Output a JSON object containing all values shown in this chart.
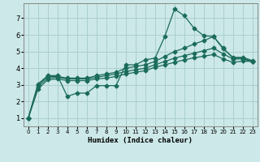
{
  "title": "",
  "xlabel": "Humidex (Indice chaleur)",
  "bg_color": "#cce8e8",
  "grid_color": "#aacfcf",
  "line_color": "#1a6b5a",
  "xlim": [
    -0.5,
    23.5
  ],
  "ylim": [
    0.5,
    7.9
  ],
  "yticks": [
    1,
    2,
    3,
    4,
    5,
    6,
    7
  ],
  "xticks": [
    0,
    1,
    2,
    3,
    4,
    5,
    6,
    7,
    8,
    9,
    10,
    11,
    12,
    13,
    14,
    15,
    16,
    17,
    18,
    19,
    20,
    21,
    22,
    23
  ],
  "series1_x": [
    0,
    1,
    2,
    3,
    4,
    5,
    6,
    7,
    8,
    9,
    10,
    11,
    12,
    13,
    14,
    15,
    16,
    17,
    18,
    19,
    20,
    21,
    22,
    23
  ],
  "series1_y": [
    1.0,
    3.05,
    3.55,
    3.55,
    2.3,
    2.5,
    2.5,
    2.95,
    2.95,
    2.95,
    4.2,
    4.2,
    4.5,
    4.6,
    5.9,
    7.55,
    7.15,
    6.4,
    5.95,
    5.9,
    5.2,
    4.6,
    4.6,
    4.4
  ],
  "series2_x": [
    0,
    1,
    2,
    3,
    4,
    5,
    6,
    7,
    8,
    9,
    10,
    11,
    12,
    13,
    14,
    15,
    16,
    17,
    18,
    19,
    20,
    21,
    22,
    23
  ],
  "series2_y": [
    1.0,
    3.0,
    3.5,
    3.5,
    3.4,
    3.4,
    3.4,
    3.55,
    3.65,
    3.75,
    4.0,
    4.1,
    4.2,
    4.4,
    4.7,
    5.0,
    5.2,
    5.45,
    5.65,
    5.9,
    5.15,
    4.65,
    4.65,
    4.45
  ],
  "series3_x": [
    0,
    1,
    2,
    3,
    4,
    5,
    6,
    7,
    8,
    9,
    10,
    11,
    12,
    13,
    14,
    15,
    16,
    17,
    18,
    19,
    20,
    21,
    22,
    23
  ],
  "series3_y": [
    1.0,
    2.9,
    3.4,
    3.45,
    3.35,
    3.35,
    3.35,
    3.45,
    3.55,
    3.65,
    3.8,
    3.9,
    4.0,
    4.2,
    4.4,
    4.6,
    4.75,
    4.9,
    5.05,
    5.2,
    4.85,
    4.55,
    4.55,
    4.4
  ],
  "series4_x": [
    0,
    1,
    2,
    3,
    4,
    5,
    6,
    7,
    8,
    9,
    10,
    11,
    12,
    13,
    14,
    15,
    16,
    17,
    18,
    19,
    20,
    21,
    22,
    23
  ],
  "series4_y": [
    1.0,
    2.75,
    3.3,
    3.35,
    3.25,
    3.25,
    3.25,
    3.35,
    3.4,
    3.5,
    3.65,
    3.75,
    3.85,
    4.05,
    4.2,
    4.35,
    4.5,
    4.62,
    4.72,
    4.82,
    4.55,
    4.35,
    4.42,
    4.4
  ]
}
